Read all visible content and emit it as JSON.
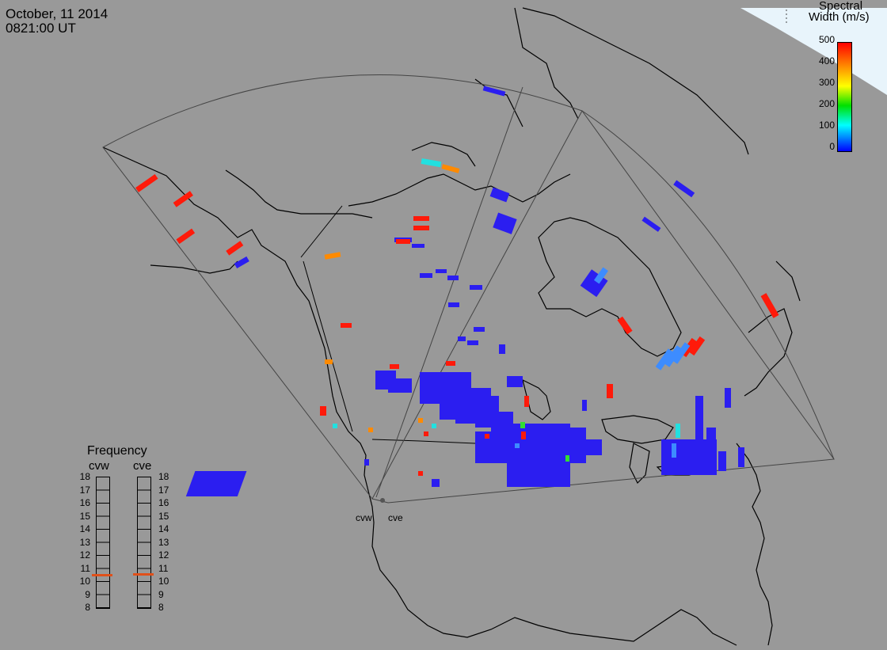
{
  "header": {
    "date": "October, 11 2014",
    "time": "0821:00 UT"
  },
  "colorbar": {
    "title_line1": "Spectral",
    "title_line2": "Width (m/s)",
    "ticks": [
      "500",
      "400",
      "300",
      "200",
      "100",
      "0"
    ],
    "colors": [
      "#ff0000",
      "#ff8000",
      "#ffff00",
      "#00e000",
      "#00ffff",
      "#0000ff"
    ]
  },
  "frequency_panel": {
    "title": "Frequency",
    "radars": [
      {
        "name": "cvw",
        "selected_mhz": 10.7
      },
      {
        "name": "cve",
        "selected_mhz": 10.7
      }
    ],
    "scale": [
      "18",
      "17",
      "16",
      "15",
      "14",
      "13",
      "12",
      "11",
      "10",
      "9",
      "8"
    ],
    "marker_color": "#e0501a"
  },
  "sites": [
    {
      "name": "cvw"
    },
    {
      "name": "cve"
    }
  ],
  "colors": {
    "background": "#999999",
    "coast": "#000000",
    "fov": "#444444",
    "day_region": "#e8f4fb",
    "blue": "#2b1ef0",
    "red": "#ff1a0a",
    "orange": "#ff8a00",
    "cyan": "#22e0e0",
    "lightblue": "#3d8cff"
  }
}
